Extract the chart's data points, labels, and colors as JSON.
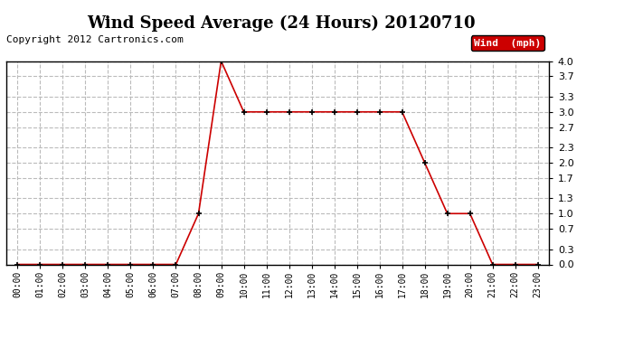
{
  "title": "Wind Speed Average (24 Hours) 20120710",
  "copyright": "Copyright 2012 Cartronics.com",
  "legend_label": "Wind  (mph)",
  "legend_bg": "#cc0000",
  "legend_text_color": "#ffffff",
  "x_labels": [
    "00:00",
    "01:00",
    "02:00",
    "03:00",
    "04:00",
    "05:00",
    "06:00",
    "07:00",
    "08:00",
    "09:00",
    "10:00",
    "11:00",
    "12:00",
    "13:00",
    "14:00",
    "15:00",
    "16:00",
    "17:00",
    "18:00",
    "19:00",
    "20:00",
    "21:00",
    "22:00",
    "23:00"
  ],
  "y_values": [
    0.0,
    0.0,
    0.0,
    0.0,
    0.0,
    0.0,
    0.0,
    0.0,
    1.0,
    4.0,
    3.0,
    3.0,
    3.0,
    3.0,
    3.0,
    3.0,
    3.0,
    3.0,
    2.0,
    1.0,
    1.0,
    0.0,
    0.0,
    0.0
  ],
  "y_ticks": [
    0.0,
    0.3,
    0.7,
    1.0,
    1.3,
    1.7,
    2.0,
    2.3,
    2.7,
    3.0,
    3.3,
    3.7,
    4.0
  ],
  "ylim": [
    0.0,
    4.0
  ],
  "line_color": "#cc0000",
  "marker": "+",
  "marker_color": "#000000",
  "grid_color": "#bbbbbb",
  "grid_style": "--",
  "bg_color": "#ffffff",
  "title_fontsize": 13,
  "copyright_fontsize": 8
}
